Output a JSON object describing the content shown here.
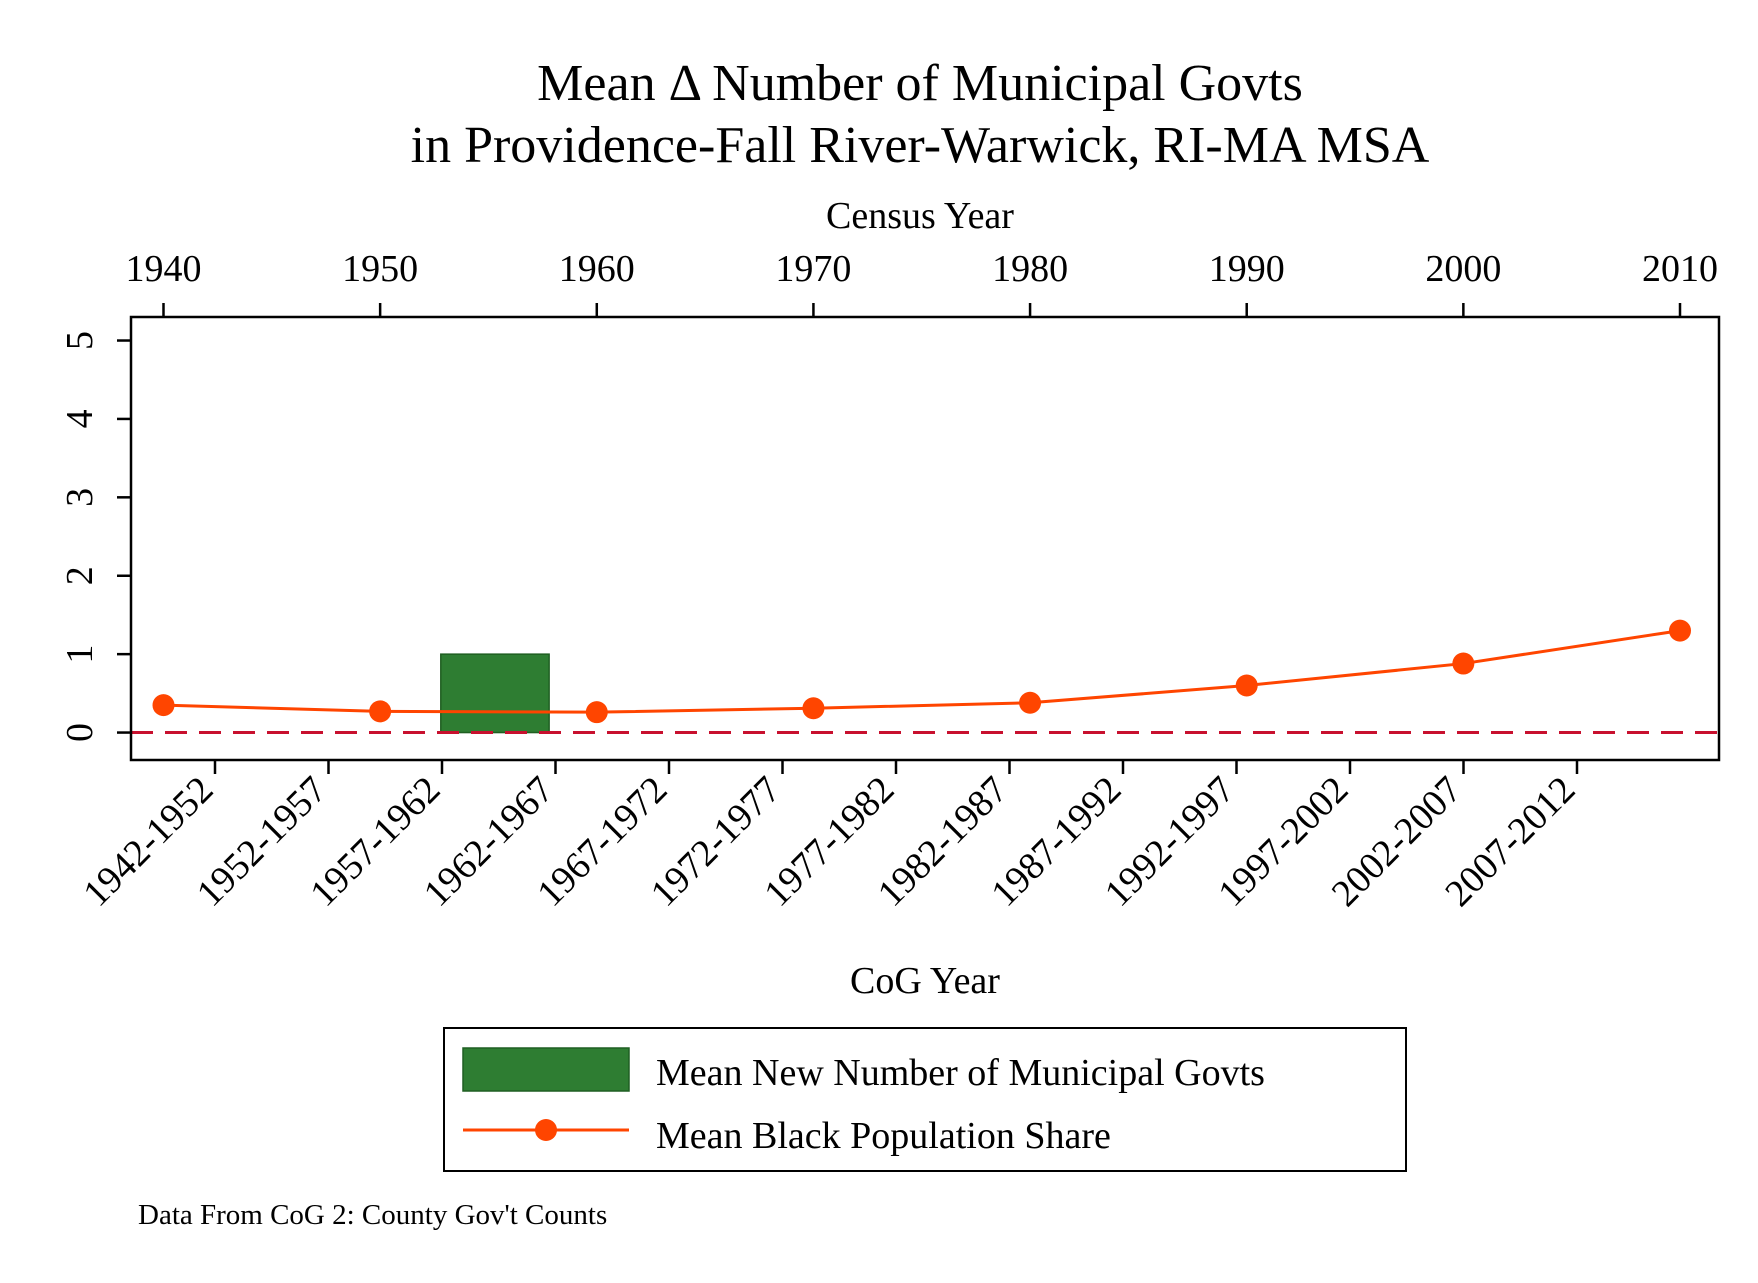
{
  "chart_data": {
    "type": "bar",
    "title": [
      "Mean Δ Number of Municipal Govts",
      "in Providence-Fall River-Warwick, RI-MA MSA"
    ],
    "top_axis_label": "Census Year",
    "top_ticks": [
      1940,
      1950,
      1960,
      1970,
      1980,
      1990,
      2000,
      2010
    ],
    "xlabel": "CoG Year",
    "categories": [
      "1942-1952",
      "1952-1957",
      "1957-1962",
      "1962-1967",
      "1967-1972",
      "1972-1977",
      "1977-1982",
      "1982-1987",
      "1987-1992",
      "1992-1997",
      "1997-2002",
      "2002-2007",
      "2007-2012"
    ],
    "ylim": [
      -0.35,
      5.3
    ],
    "yticks": [
      0,
      1,
      2,
      3,
      4,
      5
    ],
    "series": [
      {
        "name": "Mean New Number of Municipal Govts",
        "type": "bar",
        "color": "#2e7d32",
        "x": [
          1955.3
        ],
        "values": [
          1
        ]
      },
      {
        "name": "Mean Black Population Share",
        "type": "line",
        "color": "#ff4500",
        "x": [
          1940,
          1950,
          1960,
          1970,
          1980,
          1990,
          2000,
          2010
        ],
        "values": [
          0.35,
          0.27,
          0.26,
          0.31,
          0.38,
          0.6,
          0.88,
          1.3
        ]
      }
    ],
    "reference_line": {
      "y": 0,
      "style": "dashed",
      "color": "#c8102e"
    },
    "legend": {
      "placement": "bottom"
    },
    "grid": false,
    "note": "Data From CoG 2: County Gov't Counts"
  }
}
